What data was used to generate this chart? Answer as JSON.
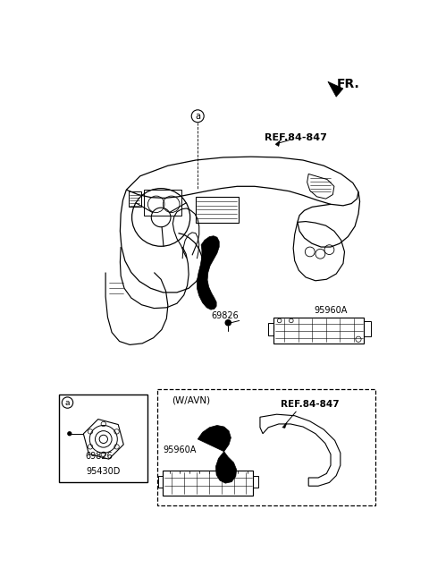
{
  "bg_color": "#ffffff",
  "line_color": "#000000",
  "fr_label": "FR.",
  "ref_label_1": "REF.84-847",
  "ref_label_2": "REF.84-847",
  "part_69826": "69826",
  "part_95960A": "95960A",
  "part_95430D": "95430D",
  "part_69826b": "69826",
  "wavn_label": "(W/AVN)",
  "circle_a": "a",
  "fig_width": 4.8,
  "fig_height": 6.45,
  "dpi": 100
}
